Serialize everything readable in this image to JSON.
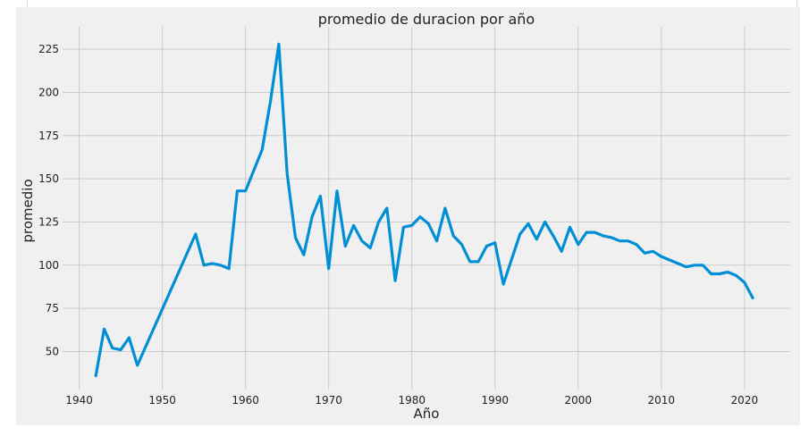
{
  "chart_data": {
    "type": "line",
    "title": "promedio de duracion por año",
    "xlabel": "Año",
    "ylabel": "promedio",
    "xlim": [
      1938,
      2025.5
    ],
    "ylim": [
      28,
      238
    ],
    "xticks": [
      1940,
      1950,
      1960,
      1970,
      1980,
      1990,
      2000,
      2010,
      2020
    ],
    "yticks": [
      50,
      75,
      100,
      125,
      150,
      175,
      200,
      225
    ],
    "grid": true,
    "colors": {
      "line": "#008fd5",
      "background": "#f0f0f0",
      "grid": "#cbcbcb"
    },
    "x": [
      1942,
      1943,
      1944,
      1945,
      1946,
      1947,
      1954,
      1955,
      1956,
      1957,
      1958,
      1959,
      1960,
      1962,
      1963,
      1964,
      1965,
      1966,
      1967,
      1968,
      1969,
      1970,
      1971,
      1972,
      1973,
      1974,
      1975,
      1976,
      1977,
      1978,
      1979,
      1980,
      1981,
      1982,
      1983,
      1984,
      1985,
      1986,
      1987,
      1988,
      1989,
      1990,
      1991,
      1993,
      1994,
      1995,
      1996,
      1997,
      1998,
      1999,
      2000,
      2001,
      2002,
      2003,
      2004,
      2005,
      2006,
      2007,
      2008,
      2009,
      2010,
      2011,
      2012,
      2013,
      2014,
      2015,
      2016,
      2017,
      2018,
      2019,
      2020,
      2021
    ],
    "y": [
      36,
      63,
      52,
      51,
      58,
      42,
      118,
      100,
      101,
      100,
      98,
      143,
      143,
      167,
      195,
      228,
      153,
      116,
      106,
      128,
      140,
      98,
      143,
      111,
      123,
      114,
      110,
      125,
      133,
      91,
      122,
      123,
      128,
      124,
      114,
      133,
      117,
      112,
      102,
      102,
      111,
      113,
      89,
      118,
      124,
      115,
      125,
      117,
      108,
      122,
      112,
      119,
      119,
      117,
      116,
      114,
      114,
      112,
      107,
      108,
      105,
      103,
      101,
      99,
      100,
      100,
      95,
      95,
      96,
      94,
      90,
      81
    ]
  }
}
